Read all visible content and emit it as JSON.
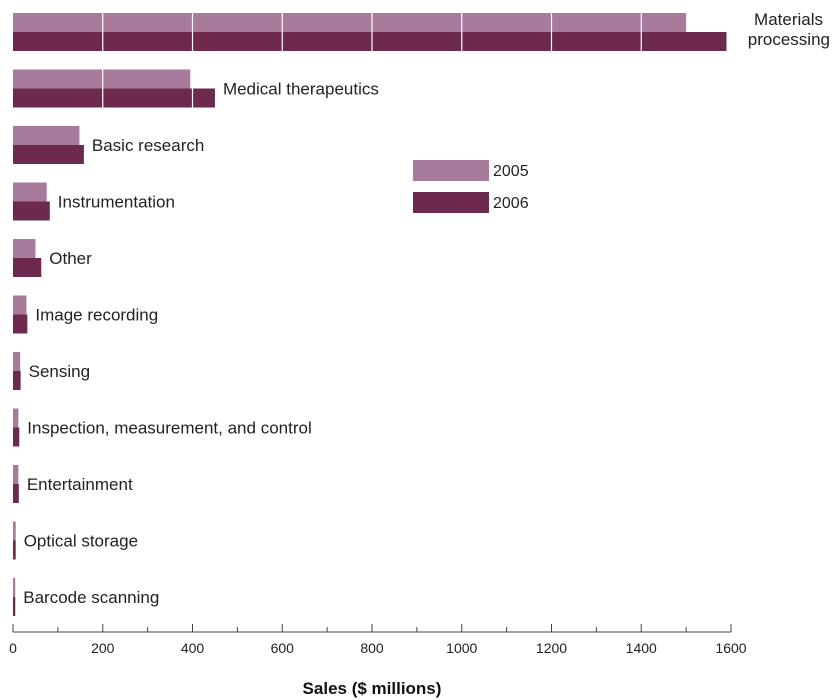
{
  "chart_data": {
    "type": "bar",
    "orientation": "horizontal",
    "categories": [
      "Materials processing",
      "Medical therapeutics",
      "Basic research",
      "Instrumentation",
      "Other",
      "Image recording",
      "Sensing",
      "Inspection, measurement, and control",
      "Entertainment",
      "Optical storage",
      "Barcode scanning"
    ],
    "series": [
      {
        "name": "2005",
        "color": "#a87a9c",
        "values": [
          1500,
          395,
          148,
          75,
          50,
          30,
          16,
          12,
          12,
          6,
          5
        ]
      },
      {
        "name": "2006",
        "color": "#6e2a4e",
        "values": [
          1590,
          450,
          158,
          82,
          63,
          32,
          17,
          14,
          13,
          6,
          5
        ]
      }
    ],
    "xlabel": "Sales ($ millions)",
    "ylabel": "",
    "xlim": [
      0,
      1600
    ],
    "xticks": [
      0,
      200,
      400,
      600,
      800,
      1000,
      1200,
      1400,
      1600
    ],
    "grid": false,
    "legend_position": "upper-middle-right"
  }
}
